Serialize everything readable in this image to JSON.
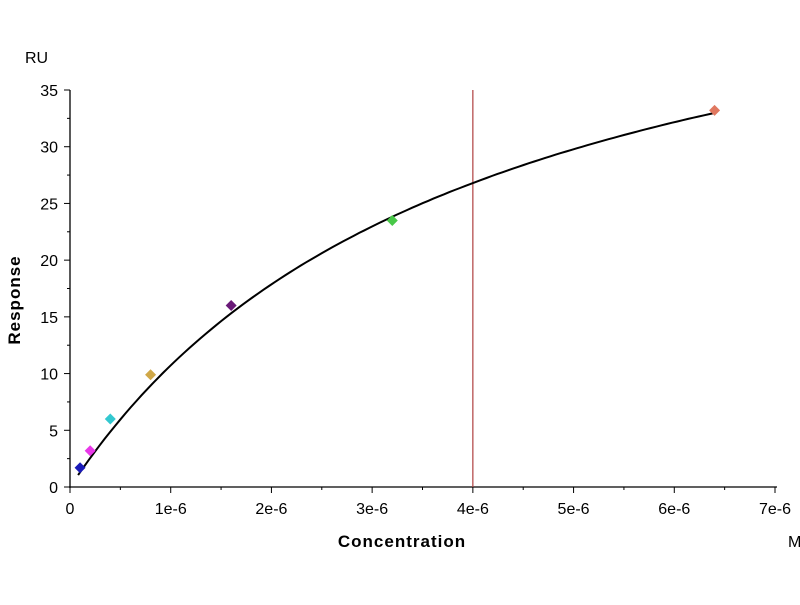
{
  "chart_data": {
    "type": "scatter",
    "title": "",
    "xlabel": "Concentration",
    "ylabel": "Response",
    "x_unit": "M",
    "y_unit": "RU",
    "xlim": [
      0,
      7e-06
    ],
    "ylim": [
      0,
      35
    ],
    "x_ticks": [
      0,
      1e-06,
      2e-06,
      3e-06,
      4e-06,
      5e-06,
      6e-06,
      7e-06
    ],
    "x_tick_labels": [
      "0",
      "1e-6",
      "2e-6",
      "3e-6",
      "4e-6",
      "5e-6",
      "6e-6",
      "7e-6"
    ],
    "y_ticks": [
      0,
      5,
      10,
      15,
      20,
      25,
      30,
      35
    ],
    "y_tick_labels": [
      "0",
      "5",
      "10",
      "15",
      "20",
      "25",
      "30",
      "35"
    ],
    "grid": false,
    "points": [
      {
        "x": 1e-07,
        "y": 1.7,
        "color": "#1a1ab8"
      },
      {
        "x": 2e-07,
        "y": 3.2,
        "color": "#e838e8"
      },
      {
        "x": 4e-07,
        "y": 6.0,
        "color": "#33c8d0"
      },
      {
        "x": 8e-07,
        "y": 9.9,
        "color": "#d0a848"
      },
      {
        "x": 1.6e-06,
        "y": 16.0,
        "color": "#6a1a78"
      },
      {
        "x": 3.2e-06,
        "y": 23.5,
        "color": "#48c848"
      },
      {
        "x": 6.4e-06,
        "y": 33.2,
        "color": "#e07860"
      }
    ],
    "fit_curve": {
      "model": "Rmax*C/(KD+C)",
      "Rmax": 53.6,
      "KD": 4e-06,
      "x_range": [
        8e-08,
        6.4e-06
      ],
      "color": "#000000"
    },
    "vertical_line": {
      "x": 4e-06,
      "color": "#b04040"
    }
  }
}
